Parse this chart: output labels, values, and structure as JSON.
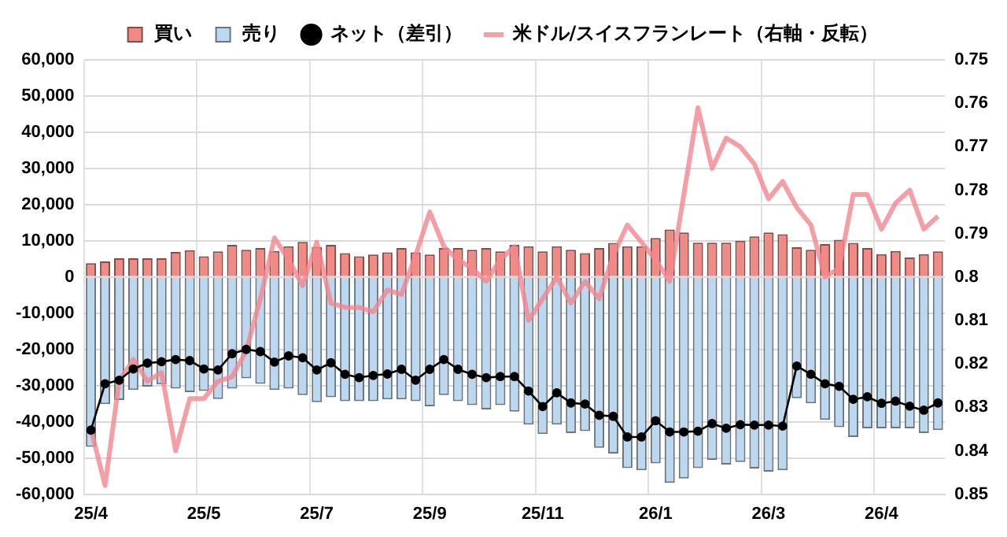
{
  "chart_data": {
    "type": "bar",
    "stacked": true,
    "grid": true,
    "legend": "top",
    "categories": [
      "25/4",
      null,
      null,
      null,
      null,
      null,
      null,
      null,
      "25/5",
      null,
      null,
      null,
      null,
      null,
      null,
      null,
      "25/7",
      null,
      null,
      null,
      null,
      null,
      null,
      null,
      "25/9",
      null,
      null,
      null,
      null,
      null,
      null,
      null,
      "25/11",
      null,
      null,
      null,
      null,
      null,
      null,
      null,
      "26/1",
      null,
      null,
      null,
      null,
      null,
      null,
      null,
      "26/3",
      null,
      null,
      null,
      null,
      null,
      null,
      null,
      "26/4",
      null,
      null,
      null,
      null
    ],
    "ylim": [
      -60000,
      60000
    ],
    "yticks": [
      {
        "value": -60000,
        "label": "-60,000"
      },
      {
        "value": -50000,
        "label": "-50,000"
      },
      {
        "value": -40000,
        "label": "-40,000"
      },
      {
        "value": -30000,
        "label": "-30,000"
      },
      {
        "value": -20000,
        "label": "-20,000"
      },
      {
        "value": -10000,
        "label": "-10,000"
      },
      0,
      {
        "value": 10000,
        "label": "10,000"
      },
      {
        "value": 20000,
        "label": "20,000"
      },
      {
        "value": 30000,
        "label": "30,000"
      },
      {
        "value": 40000,
        "label": "40,000"
      },
      {
        "value": 50000,
        "label": "50,000"
      },
      {
        "value": 60000,
        "label": "60,000"
      }
    ],
    "y2lim": [
      0.85,
      0.75
    ],
    "y2ticks": [
      0.75,
      0.76,
      0.77,
      0.78,
      0.79,
      0.8,
      0.81,
      0.82,
      0.83,
      0.84,
      0.85
    ],
    "series": [
      {
        "name": "買い",
        "color": "#f08a84",
        "values": [
          3800,
          4300,
          5200,
          5200,
          5200,
          5200,
          6900,
          7400,
          5700,
          7100,
          8900,
          7500,
          8000,
          7200,
          8500,
          9700,
          8300,
          8900,
          6600,
          5700,
          6200,
          6800,
          8000,
          6800,
          6200,
          8000,
          8000,
          7500,
          8000,
          7100,
          8900,
          8500,
          7100,
          8500,
          7500,
          6600,
          8000,
          9400,
          8500,
          8500,
          10800,
          13100,
          12300,
          9500,
          9500,
          9500,
          10000,
          11200,
          12300,
          11800,
          8200,
          7500,
          9100,
          10300,
          9400,
          8000,
          6300,
          7200,
          5400,
          6300,
          7100
        ]
      },
      {
        "name": "売り",
        "color": "#bdd7ee",
        "values": [
          -46900,
          -35100,
          -34000,
          -31200,
          -30300,
          -29700,
          -30800,
          -31800,
          -31500,
          -33700,
          -30800,
          -28000,
          -29500,
          -31200,
          -30800,
          -32600,
          -34600,
          -33200,
          -34300,
          -34300,
          -34300,
          -33800,
          -33800,
          -34300,
          -35700,
          -32600,
          -34300,
          -35400,
          -36600,
          -35400,
          -37200,
          -40800,
          -43400,
          -40800,
          -43100,
          -42600,
          -47200,
          -48800,
          -52800,
          -53400,
          -51500,
          -56900,
          -55700,
          -52800,
          -50500,
          -51800,
          -51100,
          -52900,
          -53800,
          -53400,
          -33500,
          -34900,
          -39500,
          -41500,
          -44200,
          -41800,
          -41800,
          -41800,
          -41800,
          -43100,
          -42300
        ]
      },
      {
        "name": "ネット（差引）",
        "type": "line",
        "color": "#000000",
        "marker": "circle",
        "values": [
          -42300,
          -29500,
          -28500,
          -25400,
          -23800,
          -23400,
          -22800,
          -23100,
          -25400,
          -25700,
          -21200,
          -20000,
          -20600,
          -23500,
          -21800,
          -22300,
          -25700,
          -23700,
          -26900,
          -27800,
          -27200,
          -26800,
          -25500,
          -28500,
          -25500,
          -22800,
          -25500,
          -26900,
          -27800,
          -27500,
          -27500,
          -31500,
          -35800,
          -32000,
          -34800,
          -35100,
          -38200,
          -38500,
          -44200,
          -44200,
          -39700,
          -42800,
          -42800,
          -42600,
          -40500,
          -41800,
          -40800,
          -40900,
          -40900,
          -41200,
          -24600,
          -26900,
          -29500,
          -30200,
          -33800,
          -33100,
          -34900,
          -34300,
          -35700,
          -36800,
          -34800
        ]
      },
      {
        "name": "米ドル/スイスフランレート（右軸・反転）",
        "type": "line",
        "axis": "y2",
        "color": "#f4868e",
        "marker": "none",
        "values": [
          0.835,
          0.848,
          0.824,
          0.819,
          0.824,
          0.822,
          0.84,
          0.828,
          0.828,
          0.824,
          0.823,
          0.817,
          0.805,
          0.791,
          0.796,
          0.802,
          0.792,
          0.806,
          0.807,
          0.807,
          0.808,
          0.803,
          0.804,
          0.795,
          0.785,
          0.793,
          0.796,
          0.798,
          0.801,
          0.796,
          0.793,
          0.81,
          0.805,
          0.8,
          0.806,
          0.801,
          0.805,
          0.795,
          0.788,
          0.792,
          0.796,
          0.801,
          0.781,
          0.761,
          0.775,
          0.768,
          0.77,
          0.774,
          0.782,
          0.778,
          0.784,
          0.788,
          0.8,
          0.798,
          0.781,
          0.781,
          0.789,
          0.783,
          0.78,
          0.789,
          0.786
        ]
      }
    ]
  }
}
